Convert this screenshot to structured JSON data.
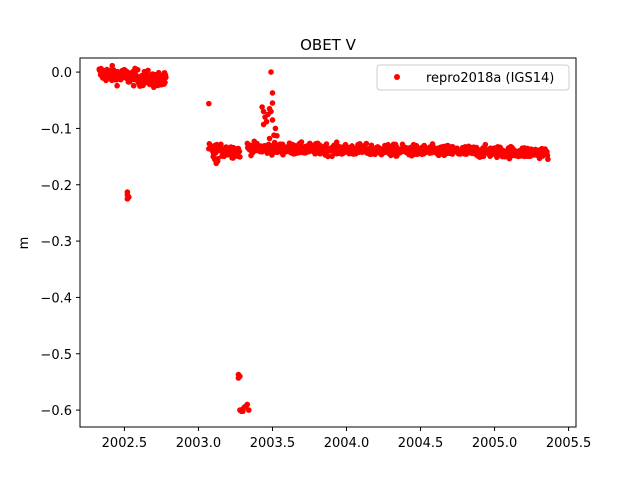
{
  "chart_data": {
    "type": "scatter",
    "title": "OBET V",
    "xlabel": "",
    "ylabel": "m",
    "xlim": [
      2002.2,
      2005.55
    ],
    "ylim": [
      -0.63,
      0.025
    ],
    "xticks": [
      2002.5,
      2003.0,
      2003.5,
      2004.0,
      2004.5,
      2005.0,
      2005.5
    ],
    "xtick_labels": [
      "2002.5",
      "2003.0",
      "2003.5",
      "2004.0",
      "2004.5",
      "2005.0",
      "2005.5"
    ],
    "yticks": [
      0.0,
      -0.1,
      -0.2,
      -0.3,
      -0.4,
      -0.5,
      -0.6
    ],
    "ytick_labels": [
      "0.0",
      "−0.1",
      "−0.2",
      "−0.3",
      "−0.4",
      "−0.5",
      "−0.6"
    ],
    "grid": false,
    "legend_position": "top-right",
    "series": [
      {
        "name": "repro2018a (IGS14)",
        "color": "#ff0000",
        "marker": "circle",
        "segments": [
          {
            "x_start": 2002.33,
            "x_end": 2002.78,
            "y_start": -0.002,
            "y_end": -0.016,
            "spread": 0.007,
            "count": 150
          },
          {
            "x_start": 2003.07,
            "x_end": 2003.28,
            "y_start": -0.138,
            "y_end": -0.14,
            "spread": 0.006,
            "count": 60
          },
          {
            "x_start": 2003.33,
            "x_end": 2005.36,
            "y_start": -0.135,
            "y_end": -0.143,
            "spread": 0.005,
            "count": 650
          }
        ],
        "points": [
          {
            "x": 2002.52,
            "y": -0.213
          },
          {
            "x": 2002.52,
            "y": -0.218
          },
          {
            "x": 2002.53,
            "y": -0.222
          },
          {
            "x": 2002.52,
            "y": -0.225
          },
          {
            "x": 2003.07,
            "y": -0.056
          },
          {
            "x": 2003.1,
            "y": -0.15
          },
          {
            "x": 2003.11,
            "y": -0.155
          },
          {
            "x": 2003.12,
            "y": -0.162
          },
          {
            "x": 2003.13,
            "y": -0.158
          },
          {
            "x": 2003.27,
            "y": -0.537
          },
          {
            "x": 2003.28,
            "y": -0.54
          },
          {
            "x": 2003.27,
            "y": -0.543
          },
          {
            "x": 2003.28,
            "y": -0.6
          },
          {
            "x": 2003.29,
            "y": -0.602
          },
          {
            "x": 2003.3,
            "y": -0.598
          },
          {
            "x": 2003.31,
            "y": -0.595
          },
          {
            "x": 2003.32,
            "y": -0.593
          },
          {
            "x": 2003.33,
            "y": -0.59
          },
          {
            "x": 2003.34,
            "y": -0.6
          },
          {
            "x": 2003.3,
            "y": -0.602
          },
          {
            "x": 2003.43,
            "y": -0.062
          },
          {
            "x": 2003.44,
            "y": -0.07
          },
          {
            "x": 2003.45,
            "y": -0.08
          },
          {
            "x": 2003.44,
            "y": -0.093
          },
          {
            "x": 2003.46,
            "y": -0.088
          },
          {
            "x": 2003.47,
            "y": -0.075
          },
          {
            "x": 2003.48,
            "y": -0.065
          },
          {
            "x": 2003.49,
            "y": -0.07
          },
          {
            "x": 2003.49,
            "y": 0.0
          },
          {
            "x": 2003.5,
            "y": -0.037
          },
          {
            "x": 2003.5,
            "y": -0.055
          },
          {
            "x": 2003.5,
            "y": -0.085
          },
          {
            "x": 2003.51,
            "y": -0.112
          },
          {
            "x": 2003.52,
            "y": -0.1
          },
          {
            "x": 2003.53,
            "y": -0.113
          },
          {
            "x": 2003.48,
            "y": -0.118
          }
        ]
      }
    ]
  }
}
